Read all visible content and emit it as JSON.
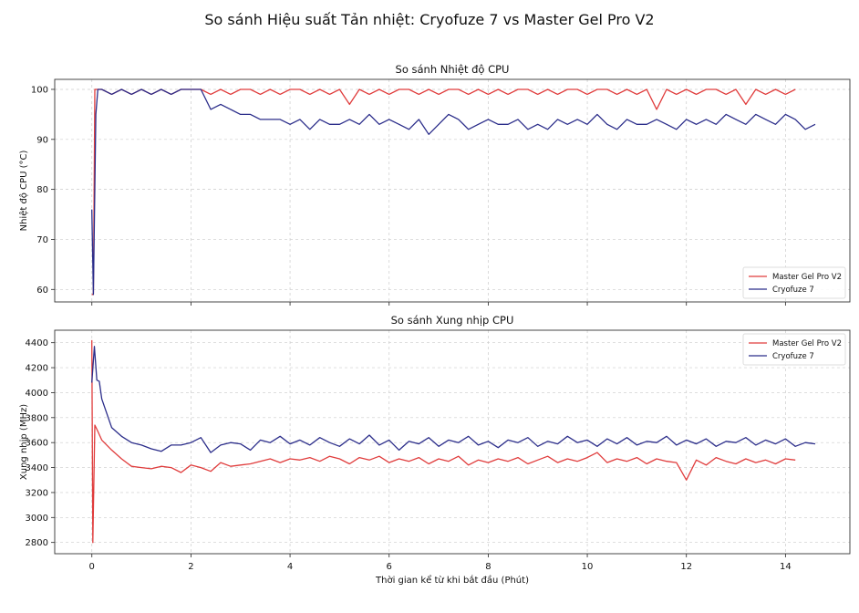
{
  "figure_title": "So sánh Hiệu suất Tản nhiệt: Cryofuze 7 vs Master Gel Pro V2",
  "colors": {
    "master": "#e03c3c",
    "cryo": "#2b2d8a",
    "grid": "#cccccc"
  },
  "chart_data": [
    {
      "type": "line",
      "title": "So sánh Nhiệt độ CPU",
      "xlabel": "",
      "ylabel": "Nhiệt độ CPU (°C)",
      "xlim": [
        -0.75,
        15.3
      ],
      "ylim": [
        57.5,
        102
      ],
      "xticks": [
        0,
        2,
        4,
        6,
        8,
        10,
        12,
        14
      ],
      "xtick_labels_shown": false,
      "yticks": [
        60,
        70,
        80,
        90,
        100
      ],
      "grid": true,
      "legend": {
        "position": "bottom-right",
        "entries": [
          "Master Gel Pro V2",
          "Cryofuze 7"
        ]
      },
      "series": [
        {
          "name": "Master Gel Pro V2",
          "color_key": "master",
          "lead_points": [
            [
              0.0,
              59
            ],
            [
              0.03,
              59
            ],
            [
              0.06,
              100
            ]
          ],
          "sampled": {
            "x_start": 0.2,
            "x_step": 0.2,
            "values": [
              100,
              99,
              100,
              99,
              100,
              99,
              100,
              99,
              100,
              100,
              100,
              99,
              100,
              99,
              100,
              100,
              99,
              100,
              99,
              100,
              100,
              99,
              100,
              99,
              100,
              97,
              100,
              99,
              100,
              99,
              100,
              100,
              99,
              100,
              99,
              100,
              100,
              99,
              100,
              99,
              100,
              99,
              100,
              100,
              99,
              100,
              99,
              100,
              100,
              99,
              100,
              100,
              99,
              100,
              99,
              100,
              96,
              100,
              99,
              100,
              99,
              100,
              100,
              99,
              100,
              97,
              100,
              99,
              100,
              99,
              100
            ]
          }
        },
        {
          "name": "Cryofuze 7",
          "color_key": "cryo",
          "lead_points": [
            [
              0.0,
              76
            ],
            [
              0.03,
              59
            ],
            [
              0.08,
              95
            ],
            [
              0.12,
              100
            ]
          ],
          "sampled": {
            "x_start": 0.2,
            "x_step": 0.2,
            "values": [
              100,
              99,
              100,
              99,
              100,
              99,
              100,
              99,
              100,
              100,
              100,
              96,
              97,
              96,
              95,
              95,
              94,
              94,
              94,
              93,
              94,
              92,
              94,
              93,
              93,
              94,
              93,
              95,
              93,
              94,
              93,
              92,
              94,
              91,
              93,
              95,
              94,
              92,
              93,
              94,
              93,
              93,
              94,
              92,
              93,
              92,
              94,
              93,
              94,
              93,
              95,
              93,
              92,
              94,
              93,
              93,
              94,
              93,
              92,
              94,
              93,
              94,
              93,
              95,
              94,
              93,
              95,
              94,
              93,
              95,
              94,
              92,
              93
            ]
          }
        }
      ]
    },
    {
      "type": "line",
      "title": "So sánh Xung nhịp CPU",
      "xlabel": "Thời gian kể từ khi bắt đầu (Phút)",
      "ylabel": "Xung nhịp (MHz)",
      "xlim": [
        -0.75,
        15.3
      ],
      "ylim": [
        2710,
        4500
      ],
      "xticks": [
        0,
        2,
        4,
        6,
        8,
        10,
        12,
        14
      ],
      "xtick_labels_shown": true,
      "yticks": [
        2800,
        3000,
        3200,
        3400,
        3600,
        3800,
        4000,
        4200,
        4400
      ],
      "grid": true,
      "legend": {
        "position": "top-right",
        "entries": [
          "Master Gel Pro V2",
          "Cryofuze 7"
        ]
      },
      "series": [
        {
          "name": "Master Gel Pro V2",
          "color_key": "master",
          "lead_points": [
            [
              0.0,
              4420
            ],
            [
              0.02,
              2800
            ],
            [
              0.06,
              3740
            ],
            [
              0.12,
              3690
            ]
          ],
          "sampled": {
            "x_start": 0.2,
            "x_step": 0.2,
            "values": [
              3620,
              3540,
              3470,
              3410,
              3400,
              3390,
              3410,
              3400,
              3360,
              3420,
              3400,
              3370,
              3440,
              3410,
              3420,
              3430,
              3450,
              3470,
              3440,
              3470,
              3460,
              3480,
              3450,
              3490,
              3470,
              3430,
              3480,
              3460,
              3490,
              3440,
              3470,
              3450,
              3480,
              3430,
              3470,
              3450,
              3490,
              3420,
              3460,
              3440,
              3470,
              3450,
              3480,
              3430,
              3460,
              3490,
              3440,
              3470,
              3450,
              3480,
              3520,
              3440,
              3470,
              3450,
              3480,
              3430,
              3470,
              3450,
              3440,
              3300,
              3460,
              3420,
              3480,
              3450,
              3430,
              3470,
              3440,
              3460,
              3430,
              3470,
              3460
            ]
          }
        },
        {
          "name": "Cryofuze 7",
          "color_key": "cryo",
          "lead_points": [
            [
              0.0,
              4080
            ],
            [
              0.05,
              4370
            ],
            [
              0.1,
              4100
            ],
            [
              0.15,
              4090
            ]
          ],
          "sampled": {
            "x_start": 0.2,
            "x_step": 0.2,
            "values": [
              3950,
              3720,
              3650,
              3600,
              3580,
              3550,
              3530,
              3580,
              3580,
              3600,
              3640,
              3520,
              3580,
              3600,
              3590,
              3540,
              3620,
              3600,
              3650,
              3590,
              3620,
              3580,
              3640,
              3600,
              3570,
              3630,
              3590,
              3660,
              3580,
              3620,
              3540,
              3610,
              3590,
              3640,
              3570,
              3620,
              3600,
              3650,
              3580,
              3610,
              3560,
              3620,
              3600,
              3640,
              3570,
              3610,
              3590,
              3650,
              3600,
              3620,
              3570,
              3630,
              3590,
              3640,
              3580,
              3610,
              3600,
              3650,
              3580,
              3620,
              3590,
              3630,
              3570,
              3610,
              3600,
              3640,
              3580,
              3620,
              3590,
              3630,
              3570,
              3600,
              3590
            ]
          }
        }
      ]
    }
  ]
}
